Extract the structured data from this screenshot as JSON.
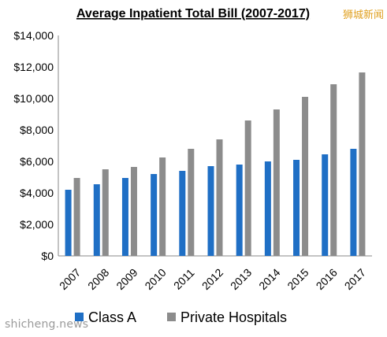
{
  "watermarks": {
    "top_right": "狮城新闻",
    "bottom_left": "shicheng.news"
  },
  "chart_data": {
    "type": "bar",
    "title": "Average Inpatient Total Bill (2007-2017)",
    "xlabel": "",
    "ylabel": "",
    "categories": [
      "2007",
      "2008",
      "2009",
      "2010",
      "2011",
      "2012",
      "2013",
      "2014",
      "2015",
      "2016",
      "2017"
    ],
    "series": [
      {
        "name": "Class A",
        "color": "#1f6fc5",
        "values": [
          4200,
          4550,
          4950,
          5200,
          5400,
          5700,
          5800,
          6000,
          6100,
          6450,
          6800
        ]
      },
      {
        "name": "Private Hospitals",
        "color": "#8c8c8c",
        "values": [
          4950,
          5500,
          5650,
          6250,
          6800,
          7400,
          8600,
          9300,
          10100,
          10900,
          11650
        ]
      }
    ],
    "ylim": [
      0,
      14000
    ],
    "yticks": [
      "$0",
      "$2,000",
      "$4,000",
      "$6,000",
      "$8,000",
      "$10,000",
      "$12,000",
      "$14,000"
    ],
    "grid": false,
    "legend": "bottom"
  }
}
